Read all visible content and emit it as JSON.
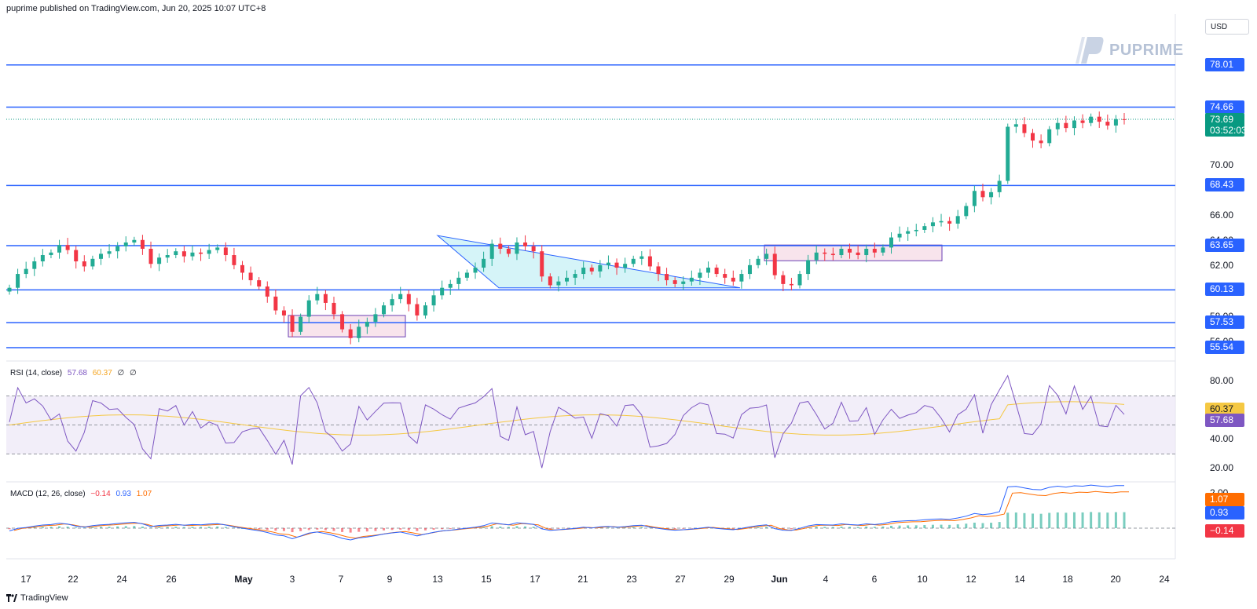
{
  "header": {
    "published_text": "puprime published on TradingView.com, Jun 20, 2025 10:07 UTC+8"
  },
  "brand": {
    "name": "PUPRIME",
    "currency": "USD",
    "footer": "TradingView"
  },
  "colors": {
    "up": "#22ab94",
    "down": "#f23645",
    "level": "#2962ff",
    "triangle_fill": "#b2ebf2",
    "rect_fill": "#f8e4ec",
    "rect_stroke": "#6a3fb4",
    "rsi_line": "#7e57c2",
    "rsi_ma": "#f5c842",
    "rsi_band": "#ede7f6",
    "macd_line": "#2962ff",
    "signal_line": "#ff6d00",
    "current_price": "#089981"
  },
  "panes": {
    "rsi_label": {
      "name": "RSI (14, close)",
      "v1": "57.68",
      "v2": "60.37",
      "v3": "∅",
      "v4": "∅"
    },
    "macd_label": {
      "name": "MACD (12, 26, close)",
      "v1": "−0.14",
      "v2": "0.93",
      "v3": "1.07"
    }
  },
  "chart_data": {
    "type": "candlestick",
    "instrument_price_axis": {
      "ticks": [
        "70.00",
        "66.00",
        "64.00",
        "62.00",
        "58.00",
        "56.00"
      ],
      "level_tags": [
        "78.01",
        "74.66",
        "68.43",
        "63.65",
        "60.13",
        "57.53",
        "55.54"
      ],
      "current_price": "73.69",
      "countdown": "03:52:03"
    },
    "horizontal_levels": [
      78.01,
      74.66,
      68.43,
      63.65,
      60.13,
      57.53,
      55.54
    ],
    "x_tick_labels": [
      "17",
      "22",
      "24",
      "26",
      "May",
      "3",
      "7",
      "9",
      "13",
      "15",
      "17",
      "21",
      "23",
      "27",
      "29",
      "Jun",
      "4",
      "6",
      "10",
      "12",
      "14",
      "18",
      "20",
      "24"
    ],
    "candles_close": [
      60.3,
      61.4,
      61.8,
      62.4,
      62.9,
      63.1,
      63.7,
      63.3,
      62.4,
      62.0,
      62.6,
      63.0,
      63.2,
      63.6,
      63.9,
      64.1,
      63.4,
      62.2,
      62.7,
      62.9,
      63.2,
      62.8,
      63.1,
      63.0,
      63.3,
      63.5,
      62.9,
      62.1,
      61.5,
      60.9,
      60.4,
      59.6,
      58.5,
      58.1,
      56.8,
      58.0,
      59.3,
      59.8,
      59.1,
      58.2,
      57.0,
      56.3,
      57.2,
      57.6,
      58.2,
      58.9,
      59.4,
      59.8,
      59.0,
      58.1,
      58.9,
      59.7,
      60.3,
      60.6,
      61.1,
      61.5,
      61.9,
      62.6,
      63.8,
      63.4,
      63.0,
      63.9,
      63.6,
      63.2,
      61.2,
      60.5,
      60.8,
      61.1,
      61.4,
      61.9,
      61.6,
      62.1,
      62.3,
      61.9,
      62.2,
      62.6,
      62.8,
      62.0,
      61.4,
      60.9,
      60.6,
      60.8,
      61.1,
      61.5,
      61.9,
      61.4,
      61.1,
      60.8,
      61.4,
      62.1,
      62.6,
      63.0,
      61.3,
      60.6,
      60.5,
      61.4,
      62.5,
      63.1,
      63.0,
      62.9,
      63.4,
      63.1,
      62.9,
      63.4,
      63.1,
      63.5,
      64.3,
      64.6,
      64.8,
      64.9,
      65.2,
      65.5,
      65.6,
      65.4,
      66.0,
      66.8,
      68.0,
      67.5,
      67.9,
      68.8,
      73.1,
      73.3,
      72.6,
      72.0,
      71.8,
      72.9,
      73.4,
      73.0,
      73.6,
      73.4,
      73.9,
      73.5,
      73.2,
      73.7,
      73.69
    ],
    "rsi_levels": [
      80.0,
      60.0,
      40.0,
      20.0
    ],
    "rsi_values": {
      "rsi": 57.68,
      "ma": 60.37
    },
    "macd_values": {
      "histogram": -0.14,
      "macd": 0.93,
      "signal": 1.07
    },
    "macd_axis_tick": "2.00",
    "rsi_axis_ticks": [
      "80.00",
      "60.00",
      "40.00",
      "20.00"
    ]
  }
}
